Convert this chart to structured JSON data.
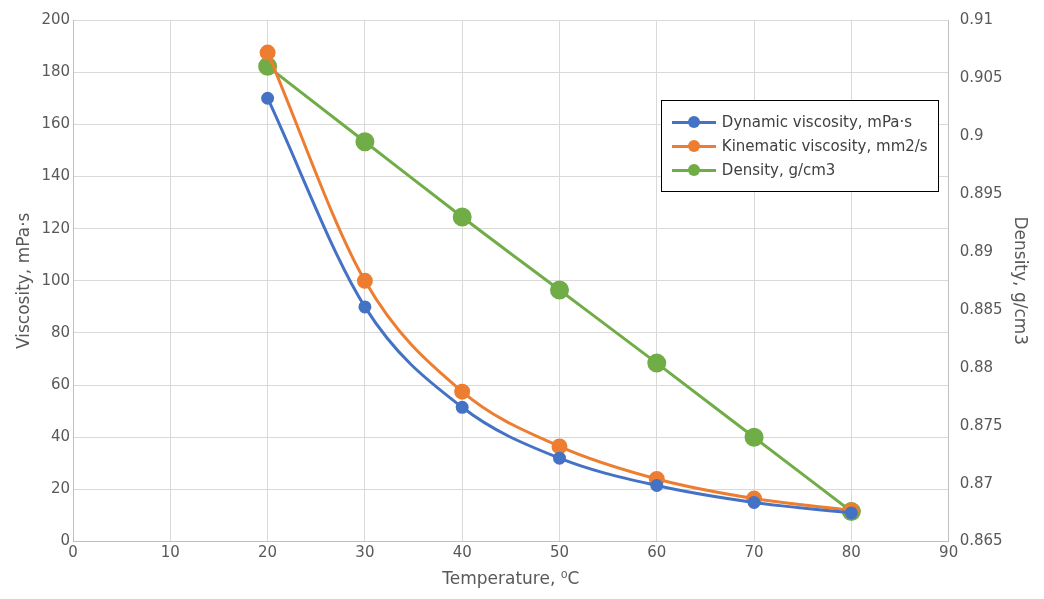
{
  "chart_data": {
    "type": "line",
    "xlabel": "Temperature, ⁰C",
    "ylabel": "Viscosity, mPa·s",
    "y2label": "Density, g/cm3",
    "x": [
      20,
      30,
      40,
      50,
      60,
      70,
      80
    ],
    "series": [
      {
        "name": "Dynamic viscosity, mPa·s",
        "color": "#4472c4",
        "values": [
          170,
          90,
          51.5,
          32,
          21.5,
          15,
          11
        ]
      },
      {
        "name": "Kinematic viscosity, mm2/s",
        "color": "#ed7d31",
        "values": [
          187.5,
          100,
          57.5,
          36.5,
          24,
          16.5,
          12
        ]
      },
      {
        "name": "Density, g/cm3",
        "color": "#70ad47",
        "axis": "y2",
        "values": [
          0.906,
          0.8995,
          0.893,
          0.8867,
          0.8804,
          0.874,
          0.8676
        ]
      }
    ],
    "xlim": [
      0,
      90
    ],
    "xticks": [
      0,
      10,
      20,
      30,
      40,
      50,
      60,
      70,
      80,
      90
    ],
    "ylim": [
      0,
      200
    ],
    "yticks": [
      0,
      20,
      40,
      60,
      80,
      100,
      120,
      140,
      160,
      180,
      200
    ],
    "y2lim": [
      0.865,
      0.91
    ],
    "y2ticks": [
      0.865,
      0.87,
      0.875,
      0.88,
      0.885,
      0.89,
      0.895,
      0.9,
      0.905,
      0.91
    ],
    "grid": true,
    "legend": "top right",
    "marker": "circle",
    "line_style": "solid"
  }
}
